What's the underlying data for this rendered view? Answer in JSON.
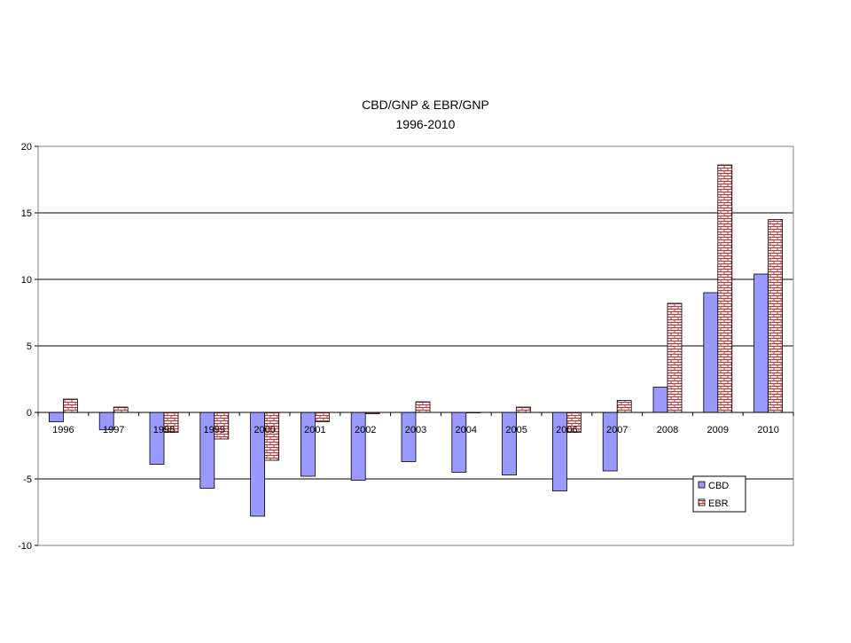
{
  "chart_data": {
    "type": "bar",
    "title": "CBD/GNP & EBR/GNP",
    "subtitle": "1996-2010",
    "xlabel": "",
    "ylabel": "",
    "categories": [
      "1996",
      "1997",
      "1998",
      "1999",
      "2000",
      "2001",
      "2002",
      "2003",
      "2004",
      "2005",
      "2006",
      "2007",
      "2008",
      "2009",
      "2010"
    ],
    "series": [
      {
        "name": "CBD",
        "values": [
          -0.7,
          -1.3,
          -3.9,
          -5.7,
          -7.8,
          -4.8,
          -5.1,
          -3.7,
          -4.5,
          -4.7,
          -5.9,
          -4.4,
          1.9,
          9.0,
          10.4
        ],
        "color": "#9999ff"
      },
      {
        "name": "EBR",
        "values": [
          1.0,
          0.4,
          -1.5,
          -2.0,
          -3.6,
          -0.7,
          -0.1,
          0.8,
          0.0,
          0.4,
          -1.5,
          0.9,
          8.2,
          18.6,
          14.5
        ],
        "color": "#ffe0e0"
      }
    ],
    "ylim": [
      -10,
      20
    ],
    "yticks": [
      -10,
      -5,
      0,
      5,
      10,
      15,
      20
    ],
    "grid": true,
    "legend_position": "bottom-right"
  }
}
